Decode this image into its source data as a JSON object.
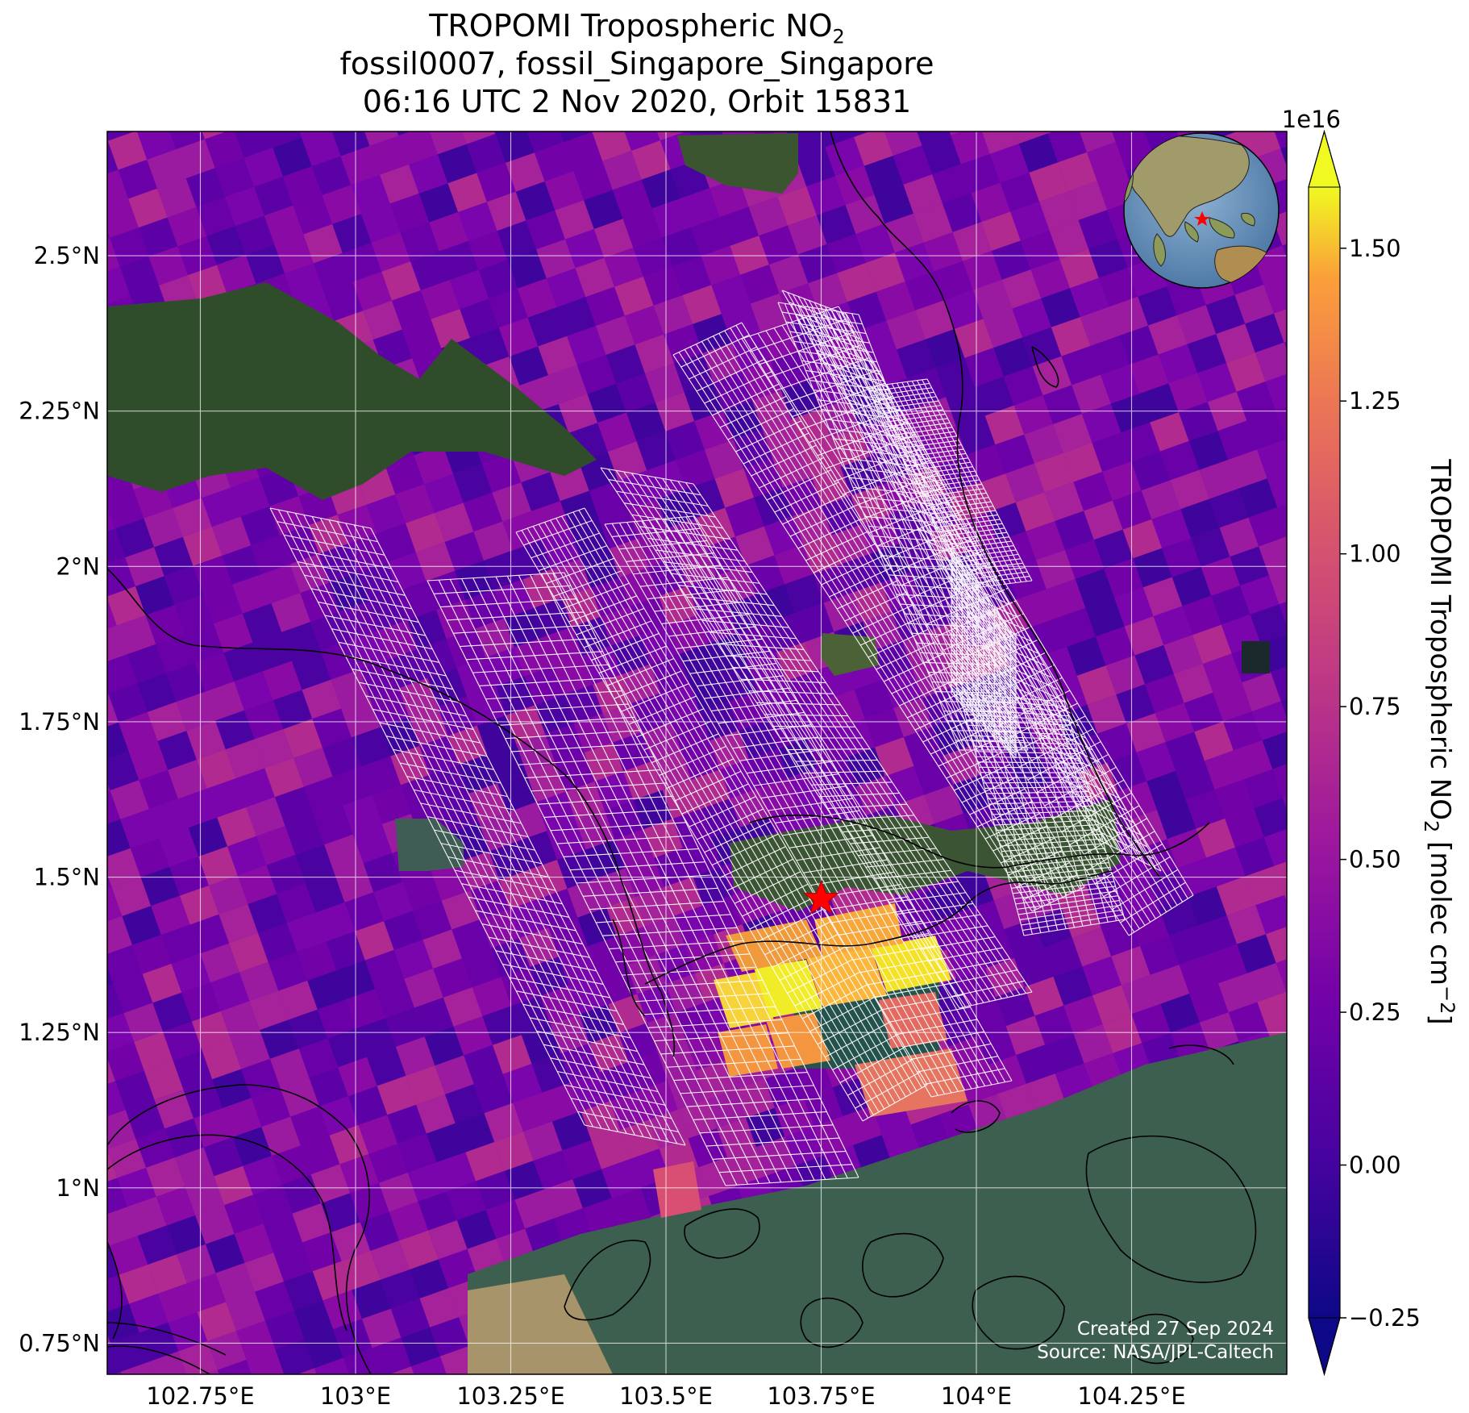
{
  "title": {
    "line1": "TROPOMI Tropospheric NO",
    "line1_sub": "2",
    "line2": "fossil0007, fossil_Singapore_Singapore",
    "line3": "06:16 UTC 2 Nov 2020, Orbit 15831"
  },
  "map": {
    "x_ticks": [
      {
        "lon": 102.75,
        "label": "102.75°E"
      },
      {
        "lon": 103.0,
        "label": "103°E"
      },
      {
        "lon": 103.25,
        "label": "103.25°E"
      },
      {
        "lon": 103.5,
        "label": "103.5°E"
      },
      {
        "lon": 103.75,
        "label": "103.75°E"
      },
      {
        "lon": 104.0,
        "label": "104°E"
      },
      {
        "lon": 104.25,
        "label": "104.25°E"
      }
    ],
    "y_ticks": [
      {
        "lat": 2.5,
        "label": "2.5°N"
      },
      {
        "lat": 2.25,
        "label": "2.25°N"
      },
      {
        "lat": 2.0,
        "label": "2°N"
      },
      {
        "lat": 1.75,
        "label": "1.75°N"
      },
      {
        "lat": 1.5,
        "label": "1.5°N"
      },
      {
        "lat": 1.25,
        "label": "1.25°N"
      },
      {
        "lat": 1.0,
        "label": "1°N"
      },
      {
        "lat": 0.75,
        "label": "0.75°N"
      }
    ],
    "lon_range": [
      102.6,
      104.5
    ],
    "lat_range": [
      0.7,
      2.7
    ],
    "target": {
      "name": "fossil_Singapore_Singapore",
      "lon": 103.75,
      "lat": 1.465,
      "marker": "red-star"
    },
    "credit_created": "Created 27 Sep 2024",
    "credit_source": "Source: NASA/JPL-Caltech",
    "inset_globe": {
      "center_region": "Southeast Asia",
      "marker": "red-star"
    }
  },
  "colorbar": {
    "label_main": "TROPOMI Tropospheric NO",
    "label_sub": "2",
    "label_units": " [molec cm",
    "label_exp": "−2",
    "label_end": "]",
    "scale_factor": "1e16",
    "colormap": "plasma",
    "extend": "both",
    "vmin": -0.25,
    "vmax": 1.6,
    "ticks": [
      {
        "value": 1.5,
        "label": "1.50"
      },
      {
        "value": 1.25,
        "label": "1.25"
      },
      {
        "value": 1.0,
        "label": "1.00"
      },
      {
        "value": 0.75,
        "label": "0.75"
      },
      {
        "value": 0.5,
        "label": "0.50"
      },
      {
        "value": 0.25,
        "label": "0.25"
      },
      {
        "value": 0.0,
        "label": "0.00"
      },
      {
        "value": -0.25,
        "label": "−0.25"
      }
    ]
  }
}
